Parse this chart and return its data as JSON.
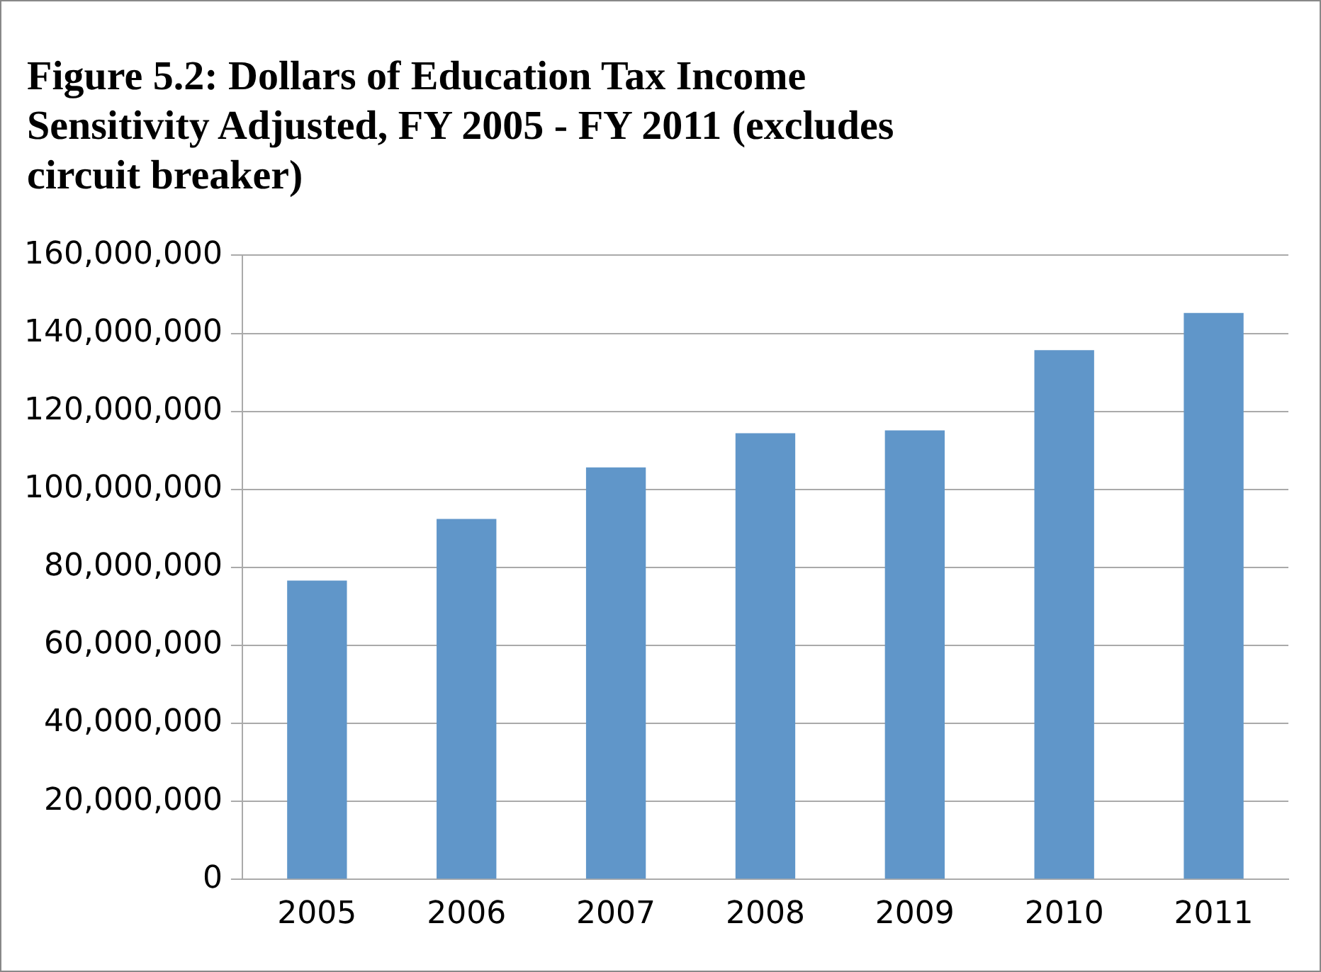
{
  "chart_data": {
    "type": "bar",
    "title": "Figure 5.2:  Dollars of Education Tax Income Sensitivity Adjusted, FY 2005 - FY 2011 (excludes circuit breaker)",
    "categories": [
      "2005",
      "2006",
      "2007",
      "2008",
      "2009",
      "2010",
      "2011"
    ],
    "values": [
      76600000,
      92400000,
      105600000,
      114400000,
      115100000,
      135700000,
      145200000
    ],
    "color": "#6096c9",
    "ylim": [
      0,
      160000000
    ],
    "yticks": [
      0,
      {
        "value": 20000000,
        "label": "20,000,000"
      },
      {
        "value": 40000000,
        "label": "40,000,000"
      },
      {
        "value": 60000000,
        "label": "60,000,000"
      },
      {
        "value": 80000000,
        "label": "80,000,000"
      },
      {
        "value": 100000000,
        "label": "100,000,000"
      },
      {
        "value": 120000000,
        "label": "120,000,000"
      },
      {
        "value": 140000000,
        "label": "140,000,000"
      },
      {
        "value": 160000000,
        "label": "160,000,000"
      }
    ],
    "grid": "y",
    "legend": false
  }
}
